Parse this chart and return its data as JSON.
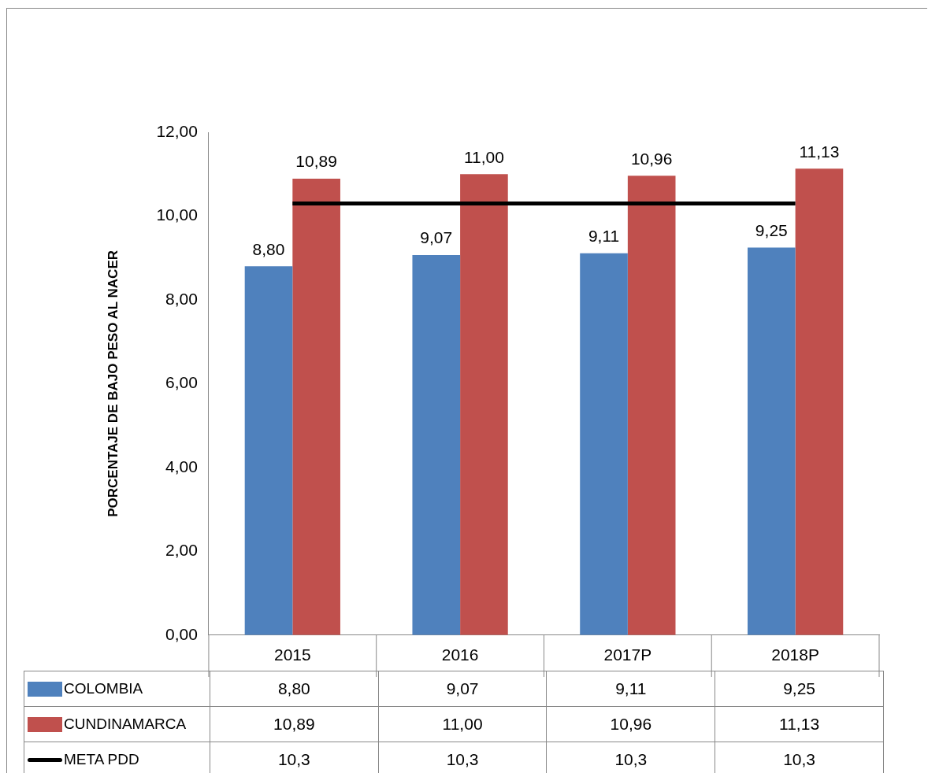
{
  "chart_data": {
    "type": "bar",
    "ylabel": "PORCENTAJE DE BAJO PESO AL NACER",
    "categories": [
      "2015",
      "2016",
      "2017P",
      "2018P"
    ],
    "series": [
      {
        "name": "COLOMBIA",
        "color": "#4f81bd",
        "values": [
          8.8,
          9.07,
          9.11,
          9.25
        ],
        "value_labels": [
          "8,80",
          "9,07",
          "9,11",
          "9,25"
        ]
      },
      {
        "name": "CUNDINAMARCA",
        "color": "#c0504d",
        "values": [
          10.89,
          11.0,
          10.96,
          11.13
        ],
        "value_labels": [
          "10,89",
          "11,00",
          "10,96",
          "11,13"
        ]
      },
      {
        "name": "META PDD",
        "type": "line",
        "color": "#000000",
        "values": [
          10.3,
          10.3,
          10.3,
          10.3
        ],
        "value_labels": [
          "10,3",
          "10,3",
          "10,3",
          "10,3"
        ],
        "marker": "none"
      }
    ],
    "ylim": [
      0,
      12
    ],
    "yticks": [
      {
        "value": 0,
        "label": "0,00"
      },
      {
        "value": 2,
        "label": "2,00"
      },
      {
        "value": 4,
        "label": "4,00"
      },
      {
        "value": 6,
        "label": "6,00"
      },
      {
        "value": 8,
        "label": "8,00"
      },
      {
        "value": 10,
        "label": "10,00"
      },
      {
        "value": 12,
        "label": "12,00"
      }
    ],
    "grid": false,
    "legend": "bottom"
  }
}
